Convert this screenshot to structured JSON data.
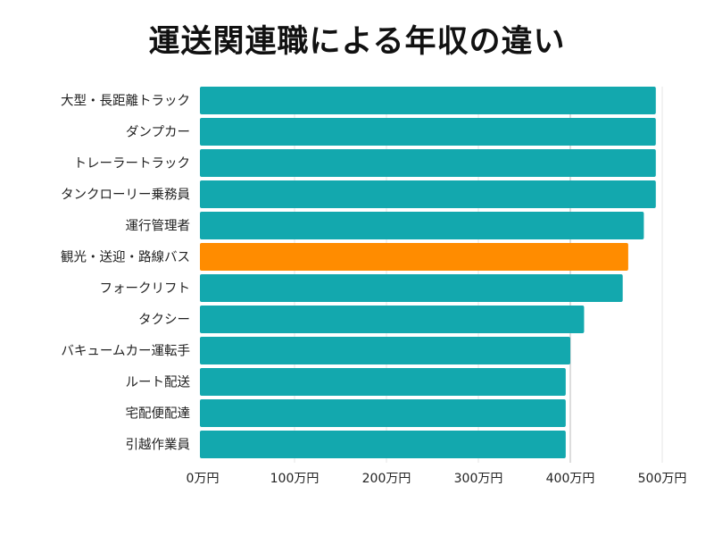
{
  "chart_data": {
    "type": "bar",
    "orientation": "horizontal",
    "title": "運送関連職による年収の違い",
    "categories": [
      "大型・長距離トラック",
      "ダンプカー",
      "トレーラートラック",
      "タンクローリー乗務員",
      "運行管理者",
      "観光・送迎・路線バス",
      "フォークリフト",
      "タクシー",
      "バキュームカー運転手",
      "ルート配送",
      "宅配便配達",
      "引越作業員"
    ],
    "values": [
      493,
      493,
      493,
      493,
      480,
      463,
      457,
      415,
      400,
      395,
      395,
      395
    ],
    "unit": "万円",
    "xlim": [
      0,
      500
    ],
    "x_ticks": [
      "0万円",
      "100万円",
      "200万円",
      "300万円",
      "400万円",
      "500万円"
    ],
    "x_tick_values": [
      0,
      100,
      200,
      300,
      400,
      500
    ],
    "grid": "vertical",
    "highlight_index": 5,
    "colors": {
      "bar": "#13a8ae",
      "highlight": "#ff8c00",
      "grid": "#e6e6e6"
    }
  }
}
